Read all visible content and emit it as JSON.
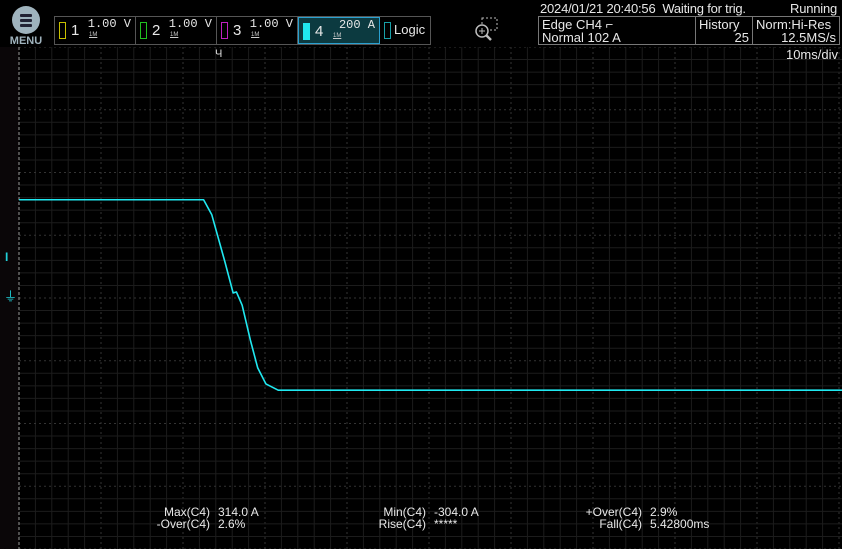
{
  "menu": {
    "label": "MENU"
  },
  "channels": [
    {
      "num": "1",
      "scale": "1.00 V",
      "coupling": "1M",
      "color": "#c8c000"
    },
    {
      "num": "2",
      "scale": "1.00 V",
      "coupling": "1M",
      "color": "#20c020"
    },
    {
      "num": "3",
      "scale": "1.00 V",
      "coupling": "1M",
      "color": "#c020c0"
    },
    {
      "num": "4",
      "scale": "200 A",
      "coupling": "1M",
      "color": "#20e8f0",
      "active": true
    }
  ],
  "logic": {
    "label": "Logic"
  },
  "status": {
    "datetime": "2024/01/21 20:40:56",
    "state": "Waiting for trig.",
    "run": "Running"
  },
  "trigger": {
    "line1": "Edge CH4 ⌐",
    "line2": "Normal 102 A"
  },
  "history": {
    "label": "History",
    "value": "25"
  },
  "acq": {
    "mode": "Norm:Hi-Res",
    "rate": "12.5MS/s"
  },
  "timebase": "10ms/div",
  "measurements": [
    {
      "key": "Max(C4)",
      "value": "314.0 A"
    },
    {
      "key": "-Over(C4)",
      "value": "2.6%"
    },
    {
      "key": "Min(C4)",
      "value": "-304.0 A"
    },
    {
      "key": "Rise(C4)",
      "value": "*****"
    },
    {
      "key": "+Over(C4)",
      "value": "2.9%"
    },
    {
      "key": "Fall(C4)",
      "value": "5.42800ms"
    }
  ],
  "chart_data": {
    "type": "line",
    "series": [
      {
        "channel": "C4",
        "color": "#20e8f0",
        "t_ms": [
          -24.5,
          -2.0,
          -1.0,
          0.6,
          1.6,
          2.0,
          2.7,
          3.7,
          4.6,
          5.6,
          7.1,
          75.9
        ],
        "current_A": [
          310,
          310,
          262,
          112,
          13,
          16,
          -26,
          -137,
          -226,
          -277,
          -297,
          -297
        ]
      }
    ],
    "x_unit": "ms",
    "y_unit": "A",
    "x_per_div": 10,
    "y_per_div": 200,
    "grid": true
  }
}
